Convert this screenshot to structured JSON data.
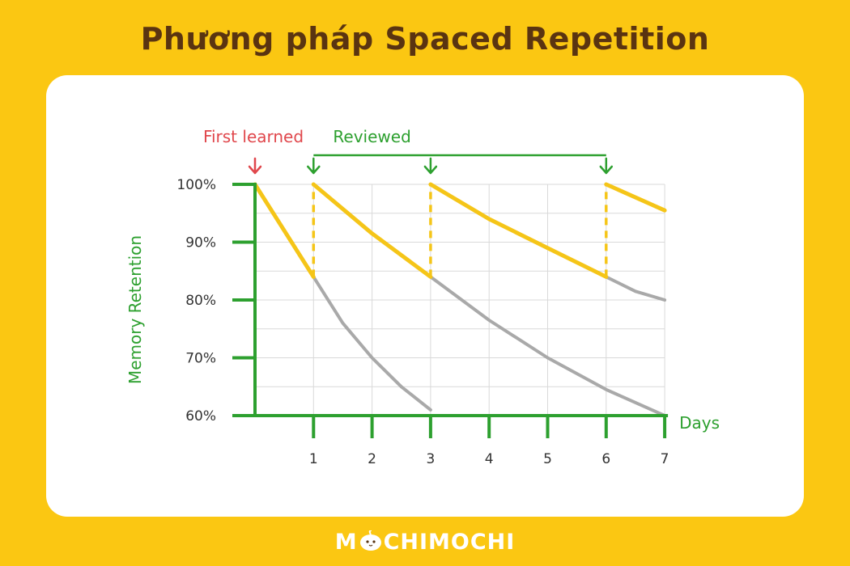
{
  "page_title": "Phương pháp Spaced Repetition",
  "brand": {
    "prefix": "M",
    "suffix": "CHIMOCHI"
  },
  "colors": {
    "background": "#FBC712",
    "title": "#5A3411",
    "axis": "#2DA02F",
    "retention_curve": "#F5C518",
    "forgetting_curve": "#A9A9A9",
    "first_learned": "#E0474C",
    "reviewed": "#2DA02F"
  },
  "chart_data": {
    "type": "line",
    "title": "",
    "xlabel": "Days",
    "ylabel": "Memory Retention",
    "xlim": [
      0,
      7
    ],
    "ylim": [
      60,
      100
    ],
    "x_ticks": [
      1,
      2,
      3,
      4,
      5,
      6,
      7
    ],
    "y_ticks": [
      "100%",
      "90%",
      "80%",
      "70%",
      "60%"
    ],
    "y_tick_values": [
      100,
      90,
      80,
      70,
      60
    ],
    "grid": true,
    "annotations": {
      "first_learned": {
        "label": "First learned",
        "day": 0
      },
      "reviewed": {
        "label": "Reviewed",
        "days": [
          1,
          3,
          6
        ]
      }
    },
    "retention_segments": [
      {
        "x": [
          0,
          1
        ],
        "y": [
          100,
          84
        ]
      },
      {
        "x": [
          1,
          2,
          3
        ],
        "y": [
          100,
          91.5,
          84
        ]
      },
      {
        "x": [
          3,
          4,
          5,
          6
        ],
        "y": [
          100,
          94,
          89,
          84
        ]
      },
      {
        "x": [
          6,
          7
        ],
        "y": [
          100,
          95.5
        ]
      }
    ],
    "review_jumps": [
      {
        "x": 1,
        "y": [
          84,
          100
        ]
      },
      {
        "x": 3,
        "y": [
          84,
          100
        ]
      },
      {
        "x": 6,
        "y": [
          84,
          100
        ]
      }
    ],
    "forgetting_curves": [
      {
        "x": [
          1,
          1.5,
          2,
          2.5,
          3
        ],
        "y": [
          84,
          76,
          70,
          65,
          61
        ]
      },
      {
        "x": [
          3,
          4,
          5,
          6,
          7
        ],
        "y": [
          84,
          76.5,
          70,
          64.5,
          60
        ]
      },
      {
        "x": [
          6,
          6.5,
          7
        ],
        "y": [
          84,
          81.5,
          80
        ]
      }
    ]
  }
}
